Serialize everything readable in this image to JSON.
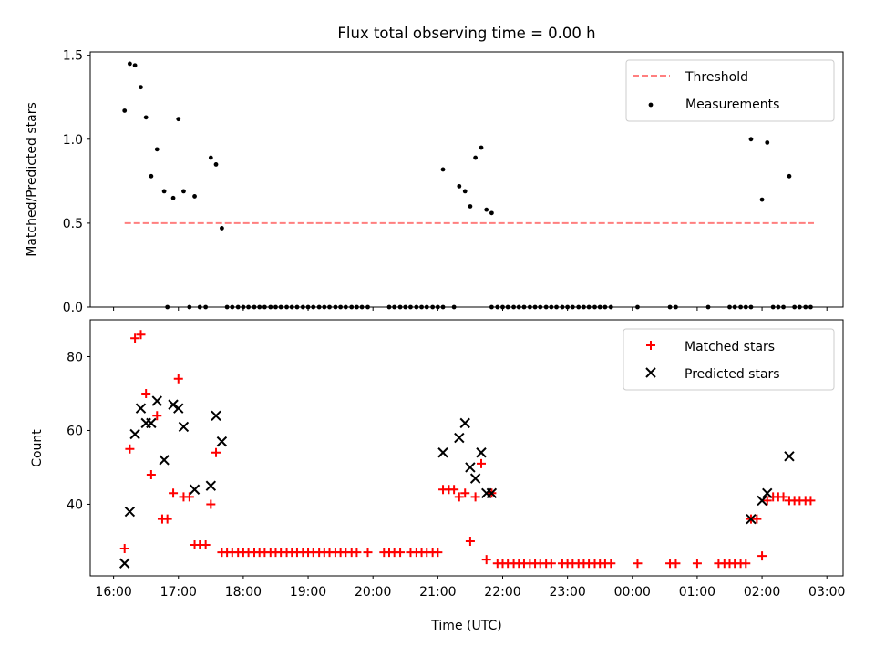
{
  "chart_data": [
    {
      "type": "scatter",
      "title": "Flux total observing time = 0.00 h",
      "ylabel": "Matched/Predicted stars",
      "ylim": [
        0,
        1.52
      ],
      "yticks": [
        "0.0",
        "0.5",
        "1.0",
        "1.5"
      ],
      "legend_position": "top-right",
      "threshold": {
        "name": "Threshold",
        "value": 0.5,
        "x_start": 16.17,
        "x_end": 26.8,
        "color": "#ff7f7f"
      },
      "series": [
        {
          "name": "Measurements",
          "color": "#000000",
          "marker": "dot",
          "points": [
            [
              16.17,
              1.17
            ],
            [
              16.25,
              1.45
            ],
            [
              16.33,
              1.44
            ],
            [
              16.42,
              1.31
            ],
            [
              16.5,
              1.13
            ],
            [
              16.58,
              0.78
            ],
            [
              16.67,
              0.94
            ],
            [
              16.78,
              0.69
            ],
            [
              16.92,
              0.65
            ],
            [
              17.0,
              1.12
            ],
            [
              17.08,
              0.69
            ],
            [
              17.25,
              0.66
            ],
            [
              17.5,
              0.89
            ],
            [
              17.58,
              0.85
            ],
            [
              17.67,
              0.47
            ],
            [
              21.08,
              0.82
            ],
            [
              21.33,
              0.72
            ],
            [
              21.42,
              0.69
            ],
            [
              21.5,
              0.6
            ],
            [
              21.58,
              0.89
            ],
            [
              21.67,
              0.95
            ],
            [
              21.75,
              0.58
            ],
            [
              21.83,
              0.56
            ],
            [
              25.83,
              1.0
            ],
            [
              26.0,
              0.64
            ],
            [
              26.08,
              0.98
            ],
            [
              26.42,
              0.78
            ]
          ]
        }
      ],
      "zero_points_x": [
        16.83,
        17.17,
        17.33,
        17.42,
        17.75,
        17.83,
        17.92,
        18.0,
        18.08,
        18.17,
        18.25,
        18.33,
        18.42,
        18.5,
        18.58,
        18.67,
        18.75,
        18.83,
        18.92,
        19.0,
        19.08,
        19.17,
        19.25,
        19.33,
        19.42,
        19.5,
        19.58,
        19.67,
        19.75,
        19.83,
        19.92,
        20.25,
        20.33,
        20.42,
        20.5,
        20.58,
        20.67,
        20.75,
        20.83,
        20.92,
        21.0,
        21.08,
        21.25,
        21.83,
        21.92,
        22.0,
        22.08,
        22.17,
        22.25,
        22.33,
        22.42,
        22.5,
        22.58,
        22.67,
        22.75,
        22.83,
        22.92,
        23.0,
        23.08,
        23.17,
        23.25,
        23.33,
        23.42,
        23.5,
        23.58,
        23.67,
        24.08,
        24.58,
        24.67,
        25.17,
        25.5,
        25.58,
        25.67,
        25.75,
        25.83,
        26.17,
        26.25,
        26.33,
        26.5,
        26.58,
        26.67,
        26.75
      ]
    },
    {
      "type": "scatter",
      "title": "",
      "xlabel": "Time (UTC)",
      "ylabel": "Count",
      "xlim": [
        15.64,
        27.25
      ],
      "ylim": [
        20.6,
        90
      ],
      "yticks": [
        "40",
        "60",
        "80"
      ],
      "xticks": [
        {
          "value": 16,
          "label": "16:00"
        },
        {
          "value": 17,
          "label": "17:00"
        },
        {
          "value": 18,
          "label": "18:00"
        },
        {
          "value": 19,
          "label": "19:00"
        },
        {
          "value": 20,
          "label": "20:00"
        },
        {
          "value": 21,
          "label": "21:00"
        },
        {
          "value": 22,
          "label": "22:00"
        },
        {
          "value": 23,
          "label": "23:00"
        },
        {
          "value": 24,
          "label": "00:00"
        },
        {
          "value": 25,
          "label": "01:00"
        },
        {
          "value": 26,
          "label": "02:00"
        },
        {
          "value": 27,
          "label": "03:00"
        }
      ],
      "legend_position": "top-right",
      "series": [
        {
          "name": "Matched stars",
          "color": "#ff0000",
          "marker": "plus",
          "points": [
            [
              16.17,
              28
            ],
            [
              16.25,
              55
            ],
            [
              16.33,
              85
            ],
            [
              16.42,
              86
            ],
            [
              16.5,
              70
            ],
            [
              16.58,
              48
            ],
            [
              16.67,
              64
            ],
            [
              16.75,
              36
            ],
            [
              16.83,
              36
            ],
            [
              16.92,
              43
            ],
            [
              17.0,
              74
            ],
            [
              17.08,
              42
            ],
            [
              17.17,
              42
            ],
            [
              17.25,
              29
            ],
            [
              17.33,
              29
            ],
            [
              17.42,
              29
            ],
            [
              17.5,
              40
            ],
            [
              17.58,
              54
            ],
            [
              17.67,
              27
            ],
            [
              17.75,
              27
            ],
            [
              17.83,
              27
            ],
            [
              17.92,
              27
            ],
            [
              18.0,
              27
            ],
            [
              18.08,
              27
            ],
            [
              18.17,
              27
            ],
            [
              18.25,
              27
            ],
            [
              18.33,
              27
            ],
            [
              18.42,
              27
            ],
            [
              18.5,
              27
            ],
            [
              18.58,
              27
            ],
            [
              18.67,
              27
            ],
            [
              18.75,
              27
            ],
            [
              18.83,
              27
            ],
            [
              18.92,
              27
            ],
            [
              19.0,
              27
            ],
            [
              19.08,
              27
            ],
            [
              19.17,
              27
            ],
            [
              19.25,
              27
            ],
            [
              19.33,
              27
            ],
            [
              19.42,
              27
            ],
            [
              19.5,
              27
            ],
            [
              19.58,
              27
            ],
            [
              19.67,
              27
            ],
            [
              19.75,
              27
            ],
            [
              19.92,
              27
            ],
            [
              20.17,
              27
            ],
            [
              20.25,
              27
            ],
            [
              20.33,
              27
            ],
            [
              20.42,
              27
            ],
            [
              20.58,
              27
            ],
            [
              20.67,
              27
            ],
            [
              20.75,
              27
            ],
            [
              20.83,
              27
            ],
            [
              20.92,
              27
            ],
            [
              21.0,
              27
            ],
            [
              21.08,
              44
            ],
            [
              21.17,
              44
            ],
            [
              21.25,
              44
            ],
            [
              21.33,
              42
            ],
            [
              21.42,
              43
            ],
            [
              21.5,
              30
            ],
            [
              21.58,
              42
            ],
            [
              21.67,
              51
            ],
            [
              21.75,
              25
            ],
            [
              21.83,
              43
            ],
            [
              21.92,
              24
            ],
            [
              22.0,
              24
            ],
            [
              22.08,
              24
            ],
            [
              22.17,
              24
            ],
            [
              22.25,
              24
            ],
            [
              22.33,
              24
            ],
            [
              22.42,
              24
            ],
            [
              22.5,
              24
            ],
            [
              22.58,
              24
            ],
            [
              22.67,
              24
            ],
            [
              22.75,
              24
            ],
            [
              22.92,
              24
            ],
            [
              23.0,
              24
            ],
            [
              23.08,
              24
            ],
            [
              23.17,
              24
            ],
            [
              23.25,
              24
            ],
            [
              23.33,
              24
            ],
            [
              23.42,
              24
            ],
            [
              23.5,
              24
            ],
            [
              23.58,
              24
            ],
            [
              23.67,
              24
            ],
            [
              24.08,
              24
            ],
            [
              24.58,
              24
            ],
            [
              24.67,
              24
            ],
            [
              25.0,
              24
            ],
            [
              25.33,
              24
            ],
            [
              25.42,
              24
            ],
            [
              25.5,
              24
            ],
            [
              25.58,
              24
            ],
            [
              25.67,
              24
            ],
            [
              25.75,
              24
            ],
            [
              25.83,
              36
            ],
            [
              25.92,
              36
            ],
            [
              26.0,
              26
            ],
            [
              26.08,
              41
            ],
            [
              26.17,
              42
            ],
            [
              26.25,
              42
            ],
            [
              26.33,
              42
            ],
            [
              26.42,
              41
            ],
            [
              26.5,
              41
            ],
            [
              26.58,
              41
            ],
            [
              26.67,
              41
            ],
            [
              26.75,
              41
            ]
          ]
        },
        {
          "name": "Predicted stars",
          "color": "#000000",
          "marker": "x",
          "points": [
            [
              16.17,
              24
            ],
            [
              16.25,
              38
            ],
            [
              16.33,
              59
            ],
            [
              16.42,
              66
            ],
            [
              16.5,
              62
            ],
            [
              16.58,
              62
            ],
            [
              16.67,
              68
            ],
            [
              16.78,
              52
            ],
            [
              16.92,
              67
            ],
            [
              17.0,
              66
            ],
            [
              17.08,
              61
            ],
            [
              17.25,
              44
            ],
            [
              17.5,
              45
            ],
            [
              17.58,
              64
            ],
            [
              17.67,
              57
            ],
            [
              21.08,
              54
            ],
            [
              21.33,
              58
            ],
            [
              21.42,
              62
            ],
            [
              21.5,
              50
            ],
            [
              21.58,
              47
            ],
            [
              21.67,
              54
            ],
            [
              21.75,
              43
            ],
            [
              21.83,
              43
            ],
            [
              25.83,
              36
            ],
            [
              26.0,
              41
            ],
            [
              26.08,
              43
            ],
            [
              26.42,
              53
            ]
          ]
        }
      ]
    }
  ]
}
